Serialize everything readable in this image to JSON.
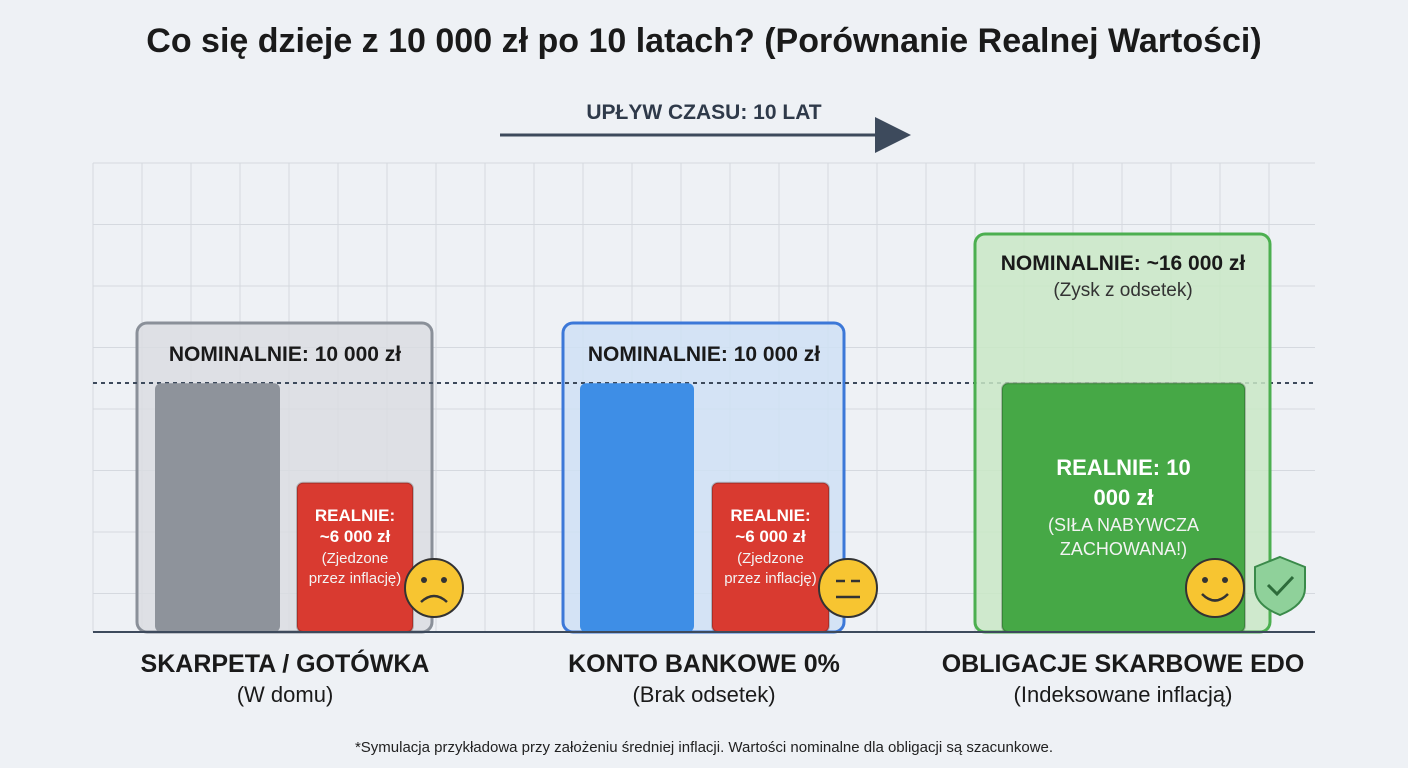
{
  "chart_data": {
    "type": "bar",
    "title": "Co się dzieje z 10 000 zł po 10 latach? (Porównanie Realnej Wartości)",
    "subtitle": "UPŁYW CZASU: 10 LAT",
    "categories": [
      "SKARPETA / GOTÓWKA",
      "KONTO BANKOWE 0%",
      "OBLIGACJE SKARBOWE EDO"
    ],
    "category_notes": [
      "(W domu)",
      "(Brak odsetek)",
      "(Indeksowane inflacją)"
    ],
    "ylim": [
      0,
      16000
    ],
    "series": [
      {
        "values": [
          10000,
          10000,
          16000
        ],
        "value_labels": [
          "NOMINALNIE: 10 000 zł",
          "NOMINALNIE: 10 000 zł",
          "NOMINALNIE: ~16 000 zł"
        ],
        "notes": [
          null,
          null,
          "(Zysk z odsetek)"
        ],
        "colors": [
          "#8e939b",
          "#3e8ee6",
          "#c9e8c6"
        ]
      },
      {
        "values": [
          6000,
          6000,
          10000
        ],
        "value_labels": [
          "REALNIE: ~6 000 zł",
          "REALNIE: ~6 000 zł",
          "REALNIE: 10 000 zł"
        ],
        "notes": [
          "(Zjedzone przez inflację)",
          "(Zjedzone przez inflację)",
          "(SIŁA NABYWCZA ZACHOWANA!)"
        ],
        "colors": [
          "#d93a30",
          "#d93a30",
          "#46a846"
        ]
      }
    ],
    "footnote": "*Symulacja przykładowa przy założeniu średniej inflacji. Wartości nominalne dla obligacji są szacunkowe."
  }
}
